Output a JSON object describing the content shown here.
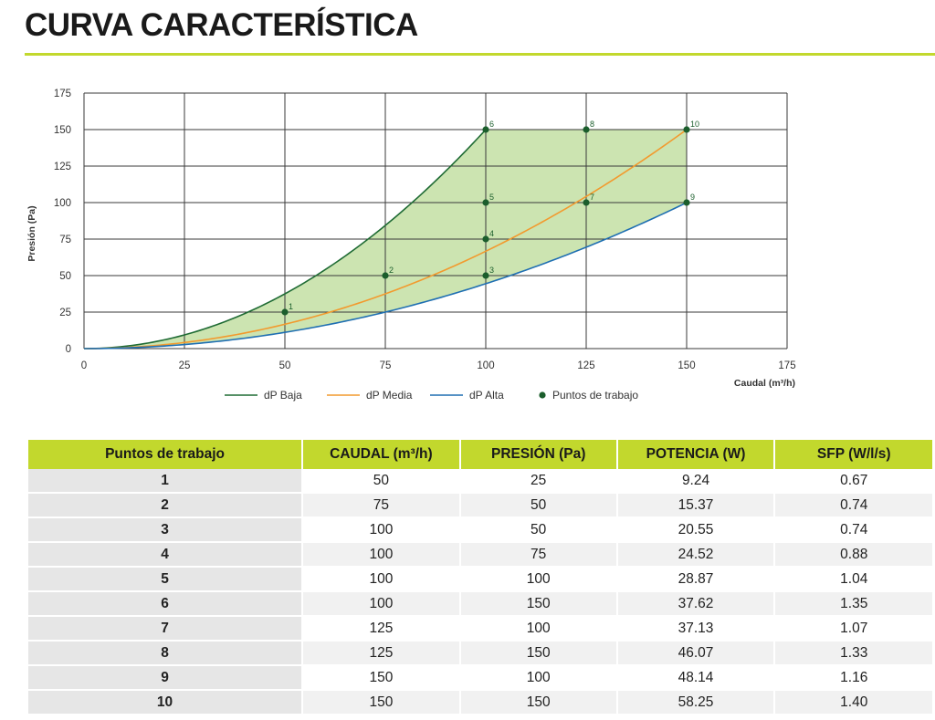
{
  "page": {
    "title": "CURVA CARACTERÍSTICA"
  },
  "chart_data": {
    "type": "line",
    "xlabel": "Caudal (m³/h)",
    "ylabel": "Presión (Pa)",
    "xlim": [
      0,
      175
    ],
    "ylim": [
      0,
      175
    ],
    "xticks": [
      0,
      25,
      50,
      75,
      100,
      125,
      150,
      175
    ],
    "yticks": [
      0,
      25,
      50,
      75,
      100,
      125,
      150,
      175
    ],
    "grid": true,
    "legend_position": "bottom",
    "series": [
      {
        "name": "dP Baja",
        "color": "#1f6b34",
        "x": [
          0,
          25,
          50,
          75,
          100
        ],
        "y": [
          0,
          9.4,
          37.5,
          84.4,
          150
        ]
      },
      {
        "name": "dP Media",
        "color": "#f29a2e",
        "x": [
          0,
          25,
          50,
          75,
          100,
          125,
          150
        ],
        "y": [
          0,
          4.2,
          16.7,
          37.5,
          66.7,
          104.2,
          150
        ]
      },
      {
        "name": "dP Alta",
        "color": "#1f6fb2",
        "x": [
          0,
          25,
          50,
          75,
          100,
          125,
          150
        ],
        "y": [
          0,
          2.8,
          11.1,
          25,
          44.4,
          69.4,
          100
        ]
      }
    ],
    "points": {
      "name": "Puntos de trabajo",
      "color": "#1b5e2c",
      "items": [
        {
          "label": "1",
          "x": 50,
          "y": 25
        },
        {
          "label": "2",
          "x": 75,
          "y": 50
        },
        {
          "label": "3",
          "x": 100,
          "y": 50
        },
        {
          "label": "4",
          "x": 100,
          "y": 75
        },
        {
          "label": "5",
          "x": 100,
          "y": 100
        },
        {
          "label": "6",
          "x": 100,
          "y": 150
        },
        {
          "label": "7",
          "x": 125,
          "y": 100
        },
        {
          "label": "8",
          "x": 125,
          "y": 150
        },
        {
          "label": "9",
          "x": 150,
          "y": 100
        },
        {
          "label": "10",
          "x": 150,
          "y": 150
        }
      ]
    },
    "fill_color": "#c9e3ad",
    "accent_color": "#c2d82d"
  },
  "table": {
    "headers": [
      "Puntos de trabajo",
      "CAUDAL (m³/h)",
      "PRESIÓN (Pa)",
      "POTENCIA (W)",
      "SFP (W/l/s)"
    ],
    "rows": [
      [
        "1",
        "50",
        "25",
        "9.24",
        "0.67"
      ],
      [
        "2",
        "75",
        "50",
        "15.37",
        "0.74"
      ],
      [
        "3",
        "100",
        "50",
        "20.55",
        "0.74"
      ],
      [
        "4",
        "100",
        "75",
        "24.52",
        "0.88"
      ],
      [
        "5",
        "100",
        "100",
        "28.87",
        "1.04"
      ],
      [
        "6",
        "100",
        "150",
        "37.62",
        "1.35"
      ],
      [
        "7",
        "125",
        "100",
        "37.13",
        "1.07"
      ],
      [
        "8",
        "125",
        "150",
        "46.07",
        "1.33"
      ],
      [
        "9",
        "150",
        "100",
        "48.14",
        "1.16"
      ],
      [
        "10",
        "150",
        "150",
        "58.25",
        "1.40"
      ]
    ]
  }
}
